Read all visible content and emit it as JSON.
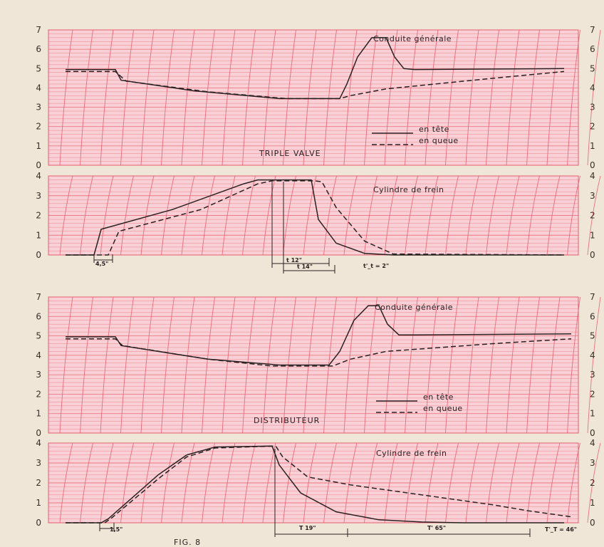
{
  "figure_label": "FIG. 8",
  "colors": {
    "paper": "#efe6d7",
    "panel": "#f8d0d6",
    "grid": "#e75d6d",
    "ink": "#2a2020"
  },
  "sections": [
    {
      "title": "TRIPLE VALVE"
    },
    {
      "title": "DISTRIBUTEUR"
    }
  ],
  "chart_data": [
    {
      "type": "line",
      "section": "TRIPLE VALVE",
      "title": "Conduite générale",
      "ylim": [
        0,
        7
      ],
      "yticks": [
        "0",
        "1",
        "2",
        "3",
        "4",
        "5",
        "6",
        "7"
      ],
      "legend": {
        "position": "lower-right",
        "entries": [
          "en tête",
          "en queue"
        ]
      },
      "series": [
        {
          "name": "en tête",
          "style": "solid",
          "points": [
            [
              0,
              4.95
            ],
            [
              70,
              4.95
            ],
            [
              78,
              4.4
            ],
            [
              180,
              3.85
            ],
            [
              300,
              3.45
            ],
            [
              385,
              3.45
            ],
            [
              395,
              4.2
            ],
            [
              410,
              5.6
            ],
            [
              430,
              6.6
            ],
            [
              450,
              6.6
            ],
            [
              462,
              5.6
            ],
            [
              475,
              5.0
            ],
            [
              490,
              4.95
            ],
            [
              700,
              5.0
            ]
          ]
        },
        {
          "name": "en queue",
          "style": "dashed",
          "points": [
            [
              0,
              4.85
            ],
            [
              70,
              4.85
            ],
            [
              85,
              4.35
            ],
            [
              200,
              3.8
            ],
            [
              310,
              3.45
            ],
            [
              385,
              3.45
            ],
            [
              400,
              3.6
            ],
            [
              450,
              3.95
            ],
            [
              600,
              4.5
            ],
            [
              700,
              4.85
            ]
          ]
        }
      ]
    },
    {
      "type": "line",
      "section": "TRIPLE VALVE",
      "title": "Cylindre de frein",
      "ylim": [
        0,
        4
      ],
      "yticks": [
        "0",
        "1",
        "2",
        "3",
        "4"
      ],
      "annotations": [
        "4,5\"",
        "t 12\"",
        "t 14\"",
        "t'_t = 2\""
      ],
      "series": [
        {
          "name": "en tête",
          "style": "solid",
          "points": [
            [
              0,
              0
            ],
            [
              40,
              0
            ],
            [
              50,
              1.3
            ],
            [
              150,
              2.3
            ],
            [
              250,
              3.6
            ],
            [
              270,
              3.8
            ],
            [
              345,
              3.8
            ],
            [
              355,
              1.8
            ],
            [
              380,
              0.6
            ],
            [
              420,
              0.08
            ],
            [
              460,
              0
            ],
            [
              700,
              0
            ]
          ]
        },
        {
          "name": "en queue",
          "style": "dashed",
          "points": [
            [
              0,
              0
            ],
            [
              60,
              0
            ],
            [
              75,
              1.2
            ],
            [
              190,
              2.3
            ],
            [
              270,
              3.6
            ],
            [
              290,
              3.75
            ],
            [
              350,
              3.75
            ],
            [
              360,
              3.7
            ],
            [
              380,
              2.4
            ],
            [
              420,
              0.7
            ],
            [
              460,
              0.05
            ],
            [
              700,
              0
            ]
          ]
        }
      ]
    },
    {
      "type": "line",
      "section": "DISTRIBUTEUR",
      "title": "Conduite générale",
      "ylim": [
        0,
        7
      ],
      "yticks": [
        "0",
        "1",
        "2",
        "3",
        "4",
        "5",
        "6",
        "7"
      ],
      "legend": {
        "position": "lower-right",
        "entries": [
          "en tête",
          "en queue"
        ]
      },
      "series": [
        {
          "name": "en tête",
          "style": "solid",
          "points": [
            [
              0,
              4.95
            ],
            [
              70,
              4.95
            ],
            [
              78,
              4.5
            ],
            [
              200,
              3.8
            ],
            [
              300,
              3.5
            ],
            [
              370,
              3.5
            ],
            [
              385,
              4.2
            ],
            [
              405,
              5.8
            ],
            [
              425,
              6.55
            ],
            [
              440,
              6.55
            ],
            [
              452,
              5.6
            ],
            [
              468,
              5.05
            ],
            [
              490,
              5.05
            ],
            [
              710,
              5.1
            ]
          ]
        },
        {
          "name": "en queue",
          "style": "dashed",
          "points": [
            [
              0,
              4.85
            ],
            [
              70,
              4.85
            ],
            [
              80,
              4.5
            ],
            [
              200,
              3.8
            ],
            [
              290,
              3.45
            ],
            [
              375,
              3.45
            ],
            [
              400,
              3.8
            ],
            [
              450,
              4.2
            ],
            [
              600,
              4.6
            ],
            [
              710,
              4.85
            ]
          ]
        }
      ]
    },
    {
      "type": "line",
      "section": "DISTRIBUTEUR",
      "title": "Cylindre de frein",
      "ylim": [
        0,
        4
      ],
      "yticks": [
        "0",
        "1",
        "2",
        "3",
        "4"
      ],
      "annotations": [
        "1,5\"",
        "T 19\"",
        "T' 65\"",
        "T'_T = 46\""
      ],
      "series": [
        {
          "name": "en tête",
          "style": "solid",
          "points": [
            [
              0,
              0
            ],
            [
              50,
              0
            ],
            [
              60,
              0.2
            ],
            [
              130,
              2.4
            ],
            [
              170,
              3.4
            ],
            [
              210,
              3.8
            ],
            [
              290,
              3.85
            ],
            [
              300,
              2.9
            ],
            [
              330,
              1.5
            ],
            [
              380,
              0.55
            ],
            [
              440,
              0.15
            ],
            [
              500,
              0.04
            ],
            [
              560,
              0
            ],
            [
              700,
              0
            ]
          ]
        },
        {
          "name": "en queue",
          "style": "dashed",
          "points": [
            [
              0,
              0
            ],
            [
              55,
              0
            ],
            [
              65,
              0.25
            ],
            [
              130,
              2.2
            ],
            [
              170,
              3.3
            ],
            [
              210,
              3.75
            ],
            [
              295,
              3.85
            ],
            [
              305,
              3.3
            ],
            [
              340,
              2.3
            ],
            [
              400,
              1.9
            ],
            [
              500,
              1.4
            ],
            [
              600,
              0.9
            ],
            [
              650,
              0.6
            ],
            [
              710,
              0.3
            ]
          ]
        }
      ]
    }
  ]
}
